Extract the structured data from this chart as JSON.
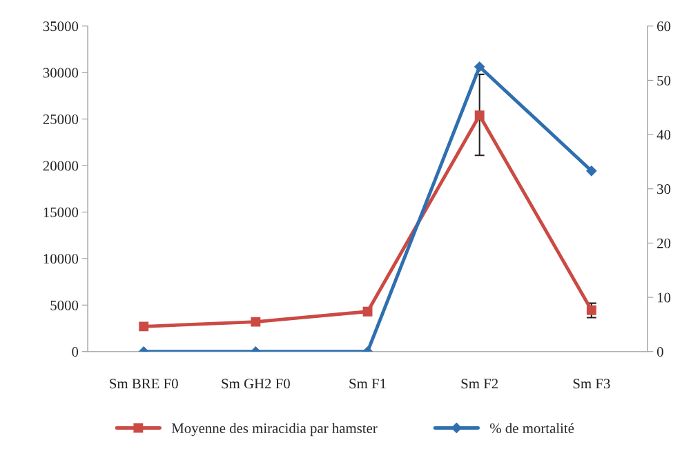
{
  "chart_data": {
    "type": "line",
    "categories": [
      "Sm BRE F0",
      "Sm GH2 F0",
      "Sm F1",
      "Sm F2",
      "Sm F3"
    ],
    "series": [
      {
        "name": "Moyenne des miracidia par hamster",
        "color": "#cb4a44",
        "values": [
          2700,
          3200,
          4300,
          25400,
          4450
        ],
        "errors": [
          null,
          null,
          null,
          [
            21100,
            29800
          ],
          [
            3650,
            5200
          ]
        ],
        "marker": "square"
      },
      {
        "name": "% de mortalité",
        "color": "#2f6fb0",
        "values": [
          0,
          0,
          0,
          52.5,
          33.3
        ],
        "axis": "y2",
        "marker": "diamond"
      }
    ],
    "ylim": [
      0,
      35000
    ],
    "yticks": [
      0,
      5000,
      10000,
      15000,
      20000,
      25000,
      30000,
      35000
    ],
    "y2lim": [
      0,
      60
    ],
    "y2ticks": [
      0,
      10,
      20,
      30,
      40,
      50,
      60
    ],
    "grid": false,
    "legend": "bottom",
    "line_style": "solid"
  }
}
